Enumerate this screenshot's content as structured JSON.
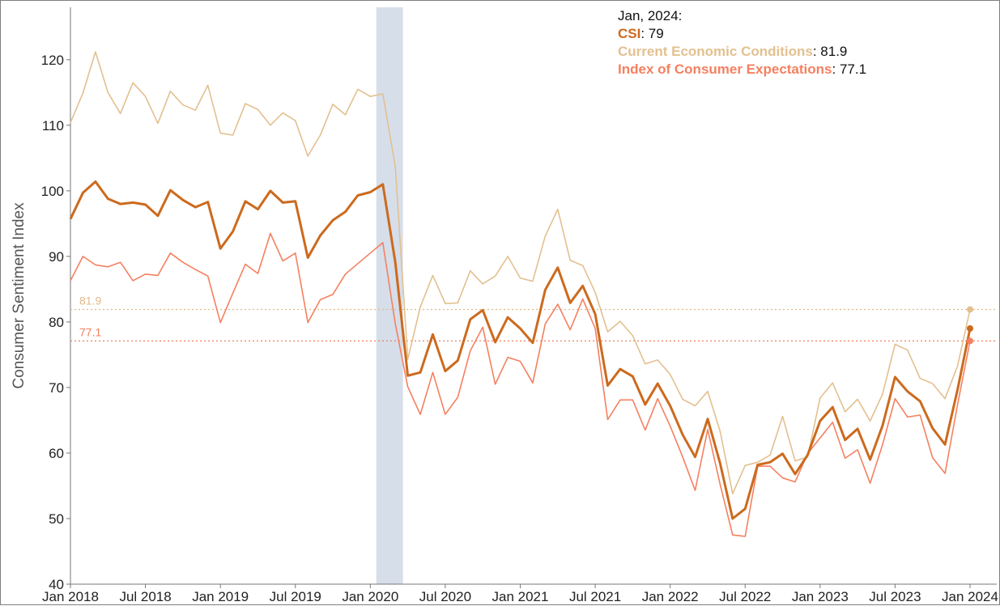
{
  "chart_data": {
    "type": "line",
    "ylabel": "Consumer Sentiment Index",
    "ylim": [
      40,
      128
    ],
    "yticks": [
      40,
      50,
      60,
      70,
      80,
      90,
      100,
      110,
      120
    ],
    "xlim": [
      "2018-01",
      "2024-01"
    ],
    "xticks": [
      "Jan 2018",
      "Jul 2018",
      "Jan 2019",
      "Jul 2019",
      "Jan 2020",
      "Jul 2020",
      "Jan 2021",
      "Jul 2021",
      "Jan 2022",
      "Jul 2022",
      "Jan 2023",
      "Jul 2023",
      "Jan 2024"
    ],
    "grid": false,
    "shaded_period": [
      "2020-02",
      "2020-04"
    ],
    "reference_lines": [
      {
        "value": 81.9,
        "label": "81.9",
        "color": "#e0bb8a"
      },
      {
        "value": 77.1,
        "label": "77.1",
        "color": "#f08060"
      }
    ],
    "x": [
      "2018-01",
      "2018-02",
      "2018-03",
      "2018-04",
      "2018-05",
      "2018-06",
      "2018-07",
      "2018-08",
      "2018-09",
      "2018-10",
      "2018-11",
      "2018-12",
      "2019-01",
      "2019-02",
      "2019-03",
      "2019-04",
      "2019-05",
      "2019-06",
      "2019-07",
      "2019-08",
      "2019-09",
      "2019-10",
      "2019-11",
      "2019-12",
      "2020-01",
      "2020-02",
      "2020-03",
      "2020-04",
      "2020-05",
      "2020-06",
      "2020-07",
      "2020-08",
      "2020-09",
      "2020-10",
      "2020-11",
      "2020-12",
      "2021-01",
      "2021-02",
      "2021-03",
      "2021-04",
      "2021-05",
      "2021-06",
      "2021-07",
      "2021-08",
      "2021-09",
      "2021-10",
      "2021-11",
      "2021-12",
      "2022-01",
      "2022-02",
      "2022-03",
      "2022-04",
      "2022-05",
      "2022-06",
      "2022-07",
      "2022-08",
      "2022-09",
      "2022-10",
      "2022-11",
      "2022-12",
      "2023-01",
      "2023-02",
      "2023-03",
      "2023-04",
      "2023-05",
      "2023-06",
      "2023-07",
      "2023-08",
      "2023-09",
      "2023-10",
      "2023-11",
      "2023-12",
      "2024-01"
    ],
    "series": [
      {
        "name": "CSI",
        "color": "#cc6a1e",
        "width": 3,
        "values": [
          95.7,
          99.7,
          101.4,
          98.8,
          98.0,
          98.2,
          97.9,
          96.2,
          100.1,
          98.6,
          97.5,
          98.3,
          91.2,
          93.8,
          98.4,
          97.2,
          100.0,
          98.2,
          98.4,
          89.8,
          93.2,
          95.5,
          96.8,
          99.3,
          99.8,
          101.0,
          89.1,
          71.8,
          72.3,
          78.1,
          72.5,
          74.1,
          80.4,
          81.8,
          76.9,
          80.7,
          79.0,
          76.8,
          84.9,
          88.3,
          82.9,
          85.5,
          81.2,
          70.3,
          72.8,
          71.7,
          67.4,
          70.6,
          67.2,
          62.8,
          59.4,
          65.2,
          58.4,
          50.0,
          51.5,
          58.2,
          58.6,
          59.9,
          56.8,
          59.7,
          64.9,
          67.0,
          62.0,
          63.7,
          59.0,
          64.2,
          71.6,
          69.4,
          67.9,
          63.8,
          61.3,
          69.7,
          79.0
        ]
      },
      {
        "name": "Current Economic Conditions",
        "color": "#e3c08f",
        "width": 1.6,
        "values": [
          110.4,
          114.9,
          121.2,
          115.0,
          111.8,
          116.5,
          114.4,
          110.3,
          115.2,
          113.1,
          112.3,
          116.1,
          108.8,
          108.5,
          113.3,
          112.4,
          110.0,
          111.9,
          110.7,
          105.3,
          108.5,
          113.2,
          111.6,
          115.5,
          114.4,
          114.8,
          103.7,
          74.3,
          82.3,
          87.1,
          82.8,
          82.9,
          87.8,
          85.8,
          87.0,
          90.0,
          86.7,
          86.2,
          93.1,
          97.2,
          89.4,
          88.6,
          84.5,
          78.5,
          80.1,
          77.9,
          73.6,
          74.2,
          72.0,
          68.2,
          67.2,
          69.4,
          63.3,
          53.8,
          58.1,
          58.6,
          59.7,
          65.6,
          58.8,
          59.4,
          68.4,
          70.7,
          66.3,
          68.2,
          64.9,
          69.0,
          76.6,
          75.7,
          71.4,
          70.6,
          68.3,
          73.3,
          81.9
        ]
      },
      {
        "name": "Index of Consumer Expectations",
        "color": "#f58060",
        "width": 1.6,
        "values": [
          86.3,
          90.0,
          88.7,
          88.4,
          89.1,
          86.3,
          87.3,
          87.1,
          90.5,
          89.1,
          88.0,
          87.0,
          79.9,
          84.4,
          88.8,
          87.4,
          93.5,
          89.3,
          90.5,
          79.9,
          83.4,
          84.2,
          87.3,
          88.9,
          90.5,
          92.1,
          79.7,
          70.1,
          65.9,
          72.3,
          65.9,
          68.5,
          75.6,
          79.2,
          70.5,
          74.6,
          74.0,
          70.7,
          79.7,
          82.7,
          78.8,
          83.5,
          79.0,
          65.1,
          68.1,
          68.1,
          63.5,
          68.3,
          64.1,
          59.4,
          54.3,
          63.6,
          55.2,
          47.5,
          47.3,
          58.0,
          58.0,
          56.2,
          55.6,
          59.9,
          62.3,
          64.7,
          59.2,
          60.5,
          55.4,
          61.3,
          68.3,
          65.5,
          65.8,
          59.3,
          56.9,
          67.4,
          77.1
        ]
      }
    ],
    "tooltip": {
      "heading": "Jan, 2024:",
      "rows": [
        {
          "name": "CSI",
          "value": "79",
          "color": "#cc6a1e"
        },
        {
          "name": "Current Economic Conditions",
          "value": "81.9",
          "color": "#e3c08f"
        },
        {
          "name": "Index of Consumer Expectations",
          "value": "77.1",
          "color": "#f58060"
        }
      ]
    }
  }
}
